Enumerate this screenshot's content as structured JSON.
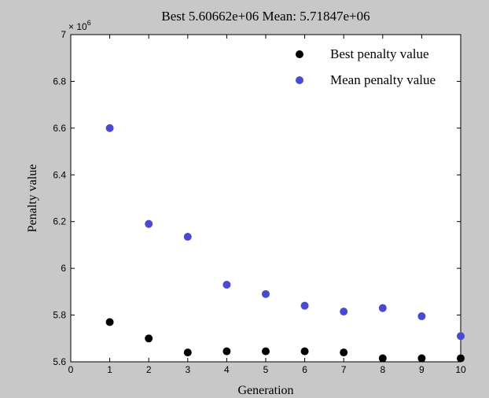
{
  "chart_data": {
    "type": "scatter",
    "title": "Best 5.60662e+06  Mean: 5.71847e+06",
    "xlabel": "Generation",
    "ylabel": "Penalty value",
    "y_multiplier_label": "× 10",
    "y_multiplier_exponent": "6",
    "xlim": [
      0,
      10
    ],
    "ylim": [
      5.6,
      7.0
    ],
    "x_ticks": [
      "0",
      "1",
      "2",
      "3",
      "4",
      "5",
      "6",
      "7",
      "8",
      "9",
      "10"
    ],
    "y_ticks": [
      "5.6",
      "5.8",
      "6",
      "6.2",
      "6.4",
      "6.6",
      "6.8",
      "7"
    ],
    "grid": false,
    "legend_position": "top-right",
    "series": [
      {
        "name": "Best penalty value",
        "color": "#000000",
        "x": [
          1,
          2,
          3,
          4,
          5,
          6,
          7,
          8,
          9,
          10
        ],
        "y": [
          5.77,
          5.7,
          5.64,
          5.645,
          5.645,
          5.645,
          5.64,
          5.615,
          5.615,
          5.615
        ]
      },
      {
        "name": "Mean penalty value",
        "color": "#4a4ad0",
        "x": [
          1,
          2,
          3,
          4,
          5,
          6,
          7,
          8,
          9,
          10
        ],
        "y": [
          6.6,
          6.19,
          6.135,
          5.93,
          5.89,
          5.84,
          5.815,
          5.83,
          5.795,
          5.71
        ]
      }
    ]
  }
}
